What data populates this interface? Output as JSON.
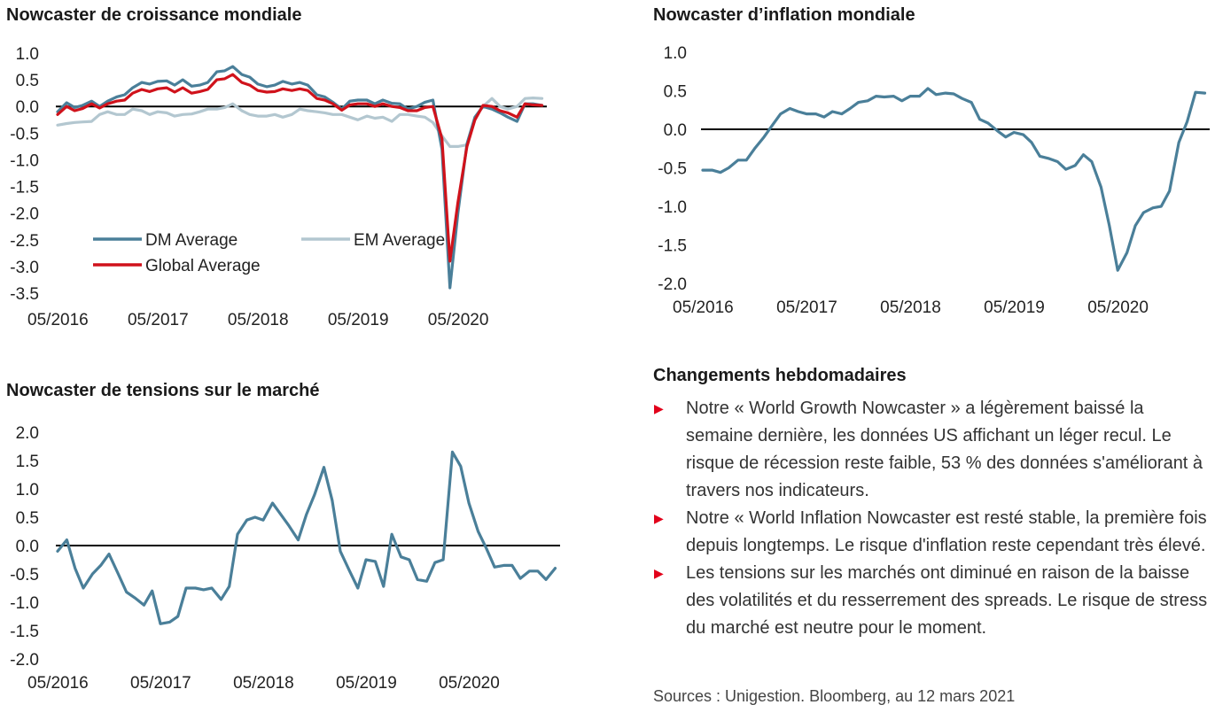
{
  "charts_meta": {
    "growth_title": "Nowcaster de croissance mondiale",
    "inflation_title": "Nowcaster d’inflation mondiale",
    "stress_title": "Nowcaster de tensions sur le marché"
  },
  "weekly": {
    "title": "Changements hebdomadaires",
    "items": [
      "Notre « World Growth Nowcaster » a légèrement baissé la semaine dernière, les données US affichant un léger recul. Le risque de récession reste faible, 53 % des données s'améliorant à travers nos indicateurs.",
      "Notre « World Inflation Nowcaster est resté stable, la première fois depuis longtemps. Le risque d'inflation reste cependant très élevé.",
      "Les tensions sur les marchés ont diminué en raison de la baisse des volatilités et du resserrement des spreads. Le risque de stress du marché est neutre pour le moment."
    ],
    "bullet": "▶"
  },
  "sources": "Sources : Unigestion. Bloomberg, au 12 mars 2021",
  "colors": {
    "dm": "#4a7f99",
    "em": "#b3c7d0",
    "global": "#d0121b",
    "stress": "#4a7f99",
    "inflation": "#4a7f99",
    "zero_line": "#000000"
  },
  "chart_data": [
    {
      "type": "line",
      "title": "Nowcaster de croissance mondiale",
      "x_ticks": [
        "05/2016",
        "05/2017",
        "05/2018",
        "05/2019",
        "05/2020"
      ],
      "x_range": [
        2016.33,
        2021.2
      ],
      "y_ticks": [
        "1.0",
        "0.5",
        "0.0",
        "-0.5",
        "-1.0",
        "-1.5",
        "-2.0",
        "-2.5",
        "-3.0",
        "-3.5"
      ],
      "ylim": [
        -3.5,
        1.0
      ],
      "legend_position": "lower-left",
      "series": [
        {
          "name": "DM Average",
          "color_key": "dm",
          "x": [
            2016.33,
            2016.42,
            2016.5,
            2016.58,
            2016.67,
            2016.75,
            2016.83,
            2016.92,
            2017.0,
            2017.08,
            2017.17,
            2017.25,
            2017.33,
            2017.42,
            2017.5,
            2017.58,
            2017.67,
            2017.75,
            2017.83,
            2017.92,
            2018.0,
            2018.08,
            2018.17,
            2018.25,
            2018.33,
            2018.42,
            2018.5,
            2018.58,
            2018.67,
            2018.75,
            2018.83,
            2018.92,
            2019.0,
            2019.08,
            2019.17,
            2019.25,
            2019.33,
            2019.42,
            2019.5,
            2019.58,
            2019.67,
            2019.75,
            2019.83,
            2019.92,
            2020.0,
            2020.08,
            2020.17,
            2020.25,
            2020.33,
            2020.42,
            2020.5,
            2020.58,
            2020.67,
            2020.75,
            2020.83,
            2020.92,
            2021.0,
            2021.08,
            2021.17
          ],
          "values": [
            -0.1,
            0.07,
            -0.02,
            0.02,
            0.1,
            0.0,
            0.1,
            0.18,
            0.22,
            0.35,
            0.45,
            0.42,
            0.47,
            0.48,
            0.4,
            0.5,
            0.38,
            0.4,
            0.45,
            0.65,
            0.67,
            0.75,
            0.6,
            0.55,
            0.42,
            0.37,
            0.4,
            0.47,
            0.42,
            0.45,
            0.4,
            0.22,
            0.18,
            0.08,
            -0.05,
            0.1,
            0.12,
            0.12,
            0.05,
            0.12,
            0.06,
            0.05,
            -0.05,
            0.0,
            0.08,
            0.12,
            -0.8,
            -3.4,
            -2.0,
            -0.7,
            -0.2,
            0.0,
            -0.05,
            -0.12,
            -0.2,
            -0.28,
            0.05,
            0.05,
            0.02
          ]
        },
        {
          "name": "EM Average",
          "color_key": "em",
          "x": [
            2016.33,
            2016.42,
            2016.5,
            2016.58,
            2016.67,
            2016.75,
            2016.83,
            2016.92,
            2017.0,
            2017.08,
            2017.17,
            2017.25,
            2017.33,
            2017.42,
            2017.5,
            2017.58,
            2017.67,
            2017.75,
            2017.83,
            2017.92,
            2018.0,
            2018.08,
            2018.17,
            2018.25,
            2018.33,
            2018.42,
            2018.5,
            2018.58,
            2018.67,
            2018.75,
            2018.83,
            2018.92,
            2019.0,
            2019.08,
            2019.17,
            2019.25,
            2019.33,
            2019.42,
            2019.5,
            2019.58,
            2019.67,
            2019.75,
            2019.83,
            2019.92,
            2020.0,
            2020.08,
            2020.17,
            2020.25,
            2020.33,
            2020.42,
            2020.5,
            2020.58,
            2020.67,
            2020.75,
            2020.83,
            2020.92,
            2021.0,
            2021.08,
            2021.17
          ],
          "values": [
            -0.35,
            -0.32,
            -0.3,
            -0.29,
            -0.28,
            -0.15,
            -0.1,
            -0.15,
            -0.15,
            -0.05,
            -0.08,
            -0.15,
            -0.1,
            -0.12,
            -0.18,
            -0.15,
            -0.14,
            -0.1,
            -0.05,
            -0.05,
            -0.02,
            0.05,
            -0.08,
            -0.15,
            -0.18,
            -0.18,
            -0.15,
            -0.2,
            -0.15,
            -0.05,
            -0.08,
            -0.1,
            -0.12,
            -0.15,
            -0.15,
            -0.2,
            -0.25,
            -0.18,
            -0.22,
            -0.2,
            -0.28,
            -0.15,
            -0.15,
            -0.18,
            -0.2,
            -0.3,
            -0.55,
            -0.75,
            -0.75,
            -0.72,
            -0.2,
            0.0,
            0.15,
            0.0,
            -0.05,
            0.0,
            0.15,
            0.16,
            0.15
          ]
        },
        {
          "name": "Global Average",
          "color_key": "global",
          "x": [
            2016.33,
            2016.42,
            2016.5,
            2016.58,
            2016.67,
            2016.75,
            2016.83,
            2016.92,
            2017.0,
            2017.08,
            2017.17,
            2017.25,
            2017.33,
            2017.42,
            2017.5,
            2017.58,
            2017.67,
            2017.75,
            2017.83,
            2017.92,
            2018.0,
            2018.08,
            2018.17,
            2018.25,
            2018.33,
            2018.42,
            2018.5,
            2018.58,
            2018.67,
            2018.75,
            2018.83,
            2018.92,
            2019.0,
            2019.08,
            2019.17,
            2019.25,
            2019.33,
            2019.42,
            2019.5,
            2019.58,
            2019.67,
            2019.75,
            2019.83,
            2019.92,
            2020.0,
            2020.08,
            2020.17,
            2020.25,
            2020.33,
            2020.42,
            2020.5,
            2020.58,
            2020.67,
            2020.75,
            2020.83,
            2020.92,
            2021.0,
            2021.08,
            2021.17
          ],
          "values": [
            -0.15,
            0.0,
            -0.08,
            -0.04,
            0.05,
            -0.03,
            0.05,
            0.1,
            0.12,
            0.25,
            0.32,
            0.28,
            0.33,
            0.35,
            0.27,
            0.35,
            0.25,
            0.28,
            0.32,
            0.5,
            0.52,
            0.6,
            0.45,
            0.4,
            0.3,
            0.27,
            0.28,
            0.33,
            0.3,
            0.33,
            0.3,
            0.15,
            0.12,
            0.05,
            -0.07,
            0.03,
            0.05,
            0.05,
            0.0,
            0.05,
            0.0,
            -0.02,
            -0.08,
            -0.08,
            -0.02,
            0.0,
            -0.6,
            -2.9,
            -1.8,
            -0.75,
            -0.25,
            0.02,
            0.0,
            -0.08,
            -0.12,
            -0.2,
            0.05,
            0.03,
            0.02
          ]
        }
      ]
    },
    {
      "type": "line",
      "title": "Nowcaster d’inflation mondiale",
      "x_ticks": [
        "05/2016",
        "05/2017",
        "05/2018",
        "05/2019",
        "05/2020"
      ],
      "x_range": [
        2016.33,
        2021.2
      ],
      "y_ticks": [
        "1.0",
        "0.5",
        "0.0",
        "-0.5",
        "-1.0",
        "-1.5",
        "-2.0"
      ],
      "ylim": [
        -2.0,
        1.0
      ],
      "series": [
        {
          "name": "",
          "color_key": "inflation",
          "x": [
            2016.33,
            2016.42,
            2016.5,
            2016.58,
            2016.67,
            2016.75,
            2016.83,
            2016.92,
            2017.0,
            2017.08,
            2017.17,
            2017.25,
            2017.33,
            2017.42,
            2017.5,
            2017.58,
            2017.67,
            2017.75,
            2017.83,
            2017.92,
            2018.0,
            2018.08,
            2018.17,
            2018.25,
            2018.33,
            2018.42,
            2018.5,
            2018.58,
            2018.67,
            2018.75,
            2018.83,
            2018.92,
            2019.0,
            2019.08,
            2019.17,
            2019.25,
            2019.33,
            2019.42,
            2019.5,
            2019.58,
            2019.67,
            2019.75,
            2019.83,
            2019.92,
            2020.0,
            2020.08,
            2020.17,
            2020.25,
            2020.33,
            2020.42,
            2020.5,
            2020.58,
            2020.67,
            2020.75,
            2020.83,
            2020.92,
            2021.0,
            2021.08,
            2021.17
          ],
          "values": [
            -0.53,
            -0.53,
            -0.56,
            -0.5,
            -0.4,
            -0.4,
            -0.25,
            -0.1,
            0.05,
            0.2,
            0.27,
            0.23,
            0.2,
            0.2,
            0.16,
            0.23,
            0.2,
            0.27,
            0.35,
            0.37,
            0.43,
            0.42,
            0.43,
            0.37,
            0.43,
            0.43,
            0.53,
            0.45,
            0.47,
            0.46,
            0.4,
            0.35,
            0.13,
            0.08,
            -0.02,
            -0.1,
            -0.04,
            -0.07,
            -0.17,
            -0.35,
            -0.38,
            -0.42,
            -0.52,
            -0.47,
            -0.33,
            -0.42,
            -0.75,
            -1.25,
            -1.83,
            -1.6,
            -1.25,
            -1.08,
            -1.02,
            -1.0,
            -0.8,
            -0.17,
            0.1,
            0.48,
            0.47
          ]
        }
      ]
    },
    {
      "type": "line",
      "title": "Nowcaster de tensions sur le marché",
      "x_ticks": [
        "05/2016",
        "05/2017",
        "05/2018",
        "05/2019",
        "05/2020"
      ],
      "x_range": [
        2016.33,
        2021.2
      ],
      "y_ticks": [
        "2.0",
        "1.5",
        "1.0",
        "0.5",
        "0.0",
        "-0.5",
        "-1.0",
        "-1.5",
        "-2.0"
      ],
      "ylim": [
        -2.0,
        2.0
      ],
      "series": [
        {
          "name": "",
          "color_key": "stress",
          "x": [
            2016.33,
            2016.42,
            2016.5,
            2016.58,
            2016.67,
            2016.75,
            2016.83,
            2016.92,
            2017.0,
            2017.08,
            2017.17,
            2017.25,
            2017.33,
            2017.42,
            2017.5,
            2017.58,
            2017.67,
            2017.75,
            2017.83,
            2017.92,
            2018.0,
            2018.08,
            2018.17,
            2018.25,
            2018.33,
            2018.42,
            2018.5,
            2018.58,
            2018.67,
            2018.75,
            2018.83,
            2018.92,
            2019.0,
            2019.08,
            2019.17,
            2019.25,
            2019.33,
            2019.42,
            2019.5,
            2019.58,
            2019.67,
            2019.75,
            2019.83,
            2019.92,
            2020.0,
            2020.08,
            2020.17,
            2020.25,
            2020.33,
            2020.42,
            2020.5,
            2020.58,
            2020.67,
            2020.75,
            2020.83,
            2020.92,
            2021.0,
            2021.08,
            2021.17
          ],
          "values": [
            -0.1,
            0.1,
            -0.4,
            -0.75,
            -0.5,
            -0.35,
            -0.15,
            -0.5,
            -0.82,
            -0.92,
            -1.05,
            -0.8,
            -1.38,
            -1.35,
            -1.25,
            -0.75,
            -0.75,
            -0.78,
            -0.75,
            -0.95,
            -0.72,
            0.2,
            0.45,
            0.5,
            0.45,
            0.75,
            0.55,
            0.35,
            0.1,
            0.55,
            0.9,
            1.38,
            0.8,
            -0.1,
            -0.45,
            -0.75,
            -0.25,
            -0.28,
            -0.72,
            0.2,
            -0.2,
            -0.25,
            -0.6,
            -0.63,
            -0.3,
            -0.25,
            1.65,
            1.4,
            0.75,
            0.25,
            -0.05,
            -0.38,
            -0.35,
            -0.35,
            -0.58,
            -0.45,
            -0.45,
            -0.6,
            -0.4
          ]
        }
      ]
    }
  ]
}
